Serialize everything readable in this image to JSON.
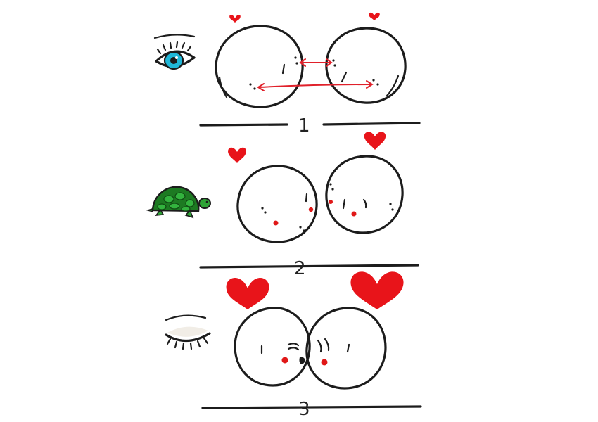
{
  "panels": [
    {
      "number": "1",
      "icon": "open-eye-icon"
    },
    {
      "number": "2",
      "icon": "turtle-icon"
    },
    {
      "number": "3",
      "icon": "closed-eye-icon"
    }
  ],
  "colors": {
    "ink": "#1c1c1c",
    "heart": "#e8141a",
    "cheek": "#e01818",
    "arrow": "#e0202a",
    "eye_iris": "#1fb7d8",
    "turtle_shell": "#1d7a22",
    "turtle_skin": "#2fa336",
    "paper": "#ffffff"
  }
}
